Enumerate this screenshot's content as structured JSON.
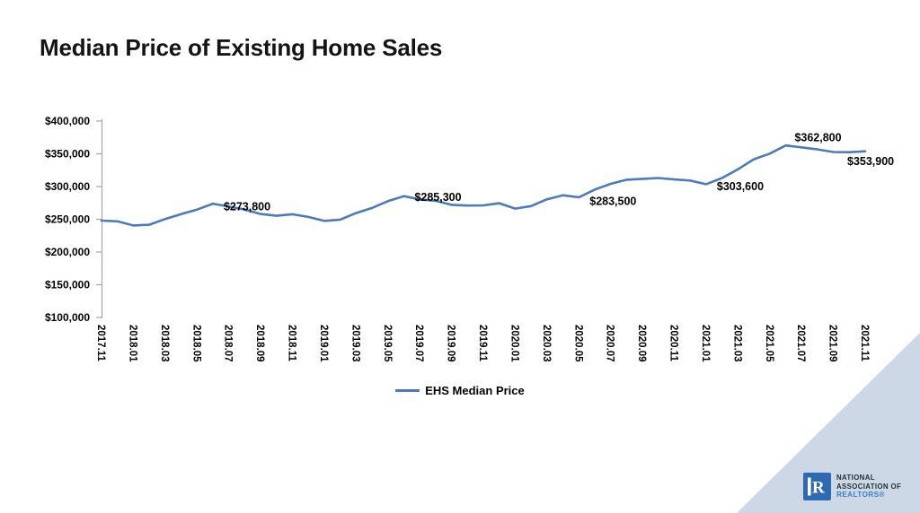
{
  "header": {
    "title": "Median Price of Existing Home Sales"
  },
  "chart_data": {
    "type": "line",
    "title": "Median Price of Existing Home Sales",
    "x": [
      "2017.11",
      "2017.12",
      "2018.01",
      "2018.02",
      "2018.03",
      "2018.04",
      "2018.05",
      "2018.06",
      "2018.07",
      "2018.08",
      "2018.09",
      "2018.10",
      "2018.11",
      "2018.12",
      "2019.01",
      "2019.02",
      "2019.03",
      "2019.04",
      "2019.05",
      "2019.06",
      "2019.07",
      "2019.08",
      "2019.09",
      "2019.10",
      "2019.11",
      "2019.12",
      "2020.01",
      "2020.02",
      "2020.03",
      "2020.04",
      "2020.05",
      "2020.06",
      "2020.07",
      "2020.08",
      "2020.09",
      "2020.10",
      "2020.11",
      "2020.12",
      "2021.01",
      "2021.02",
      "2021.03",
      "2021.04",
      "2021.05",
      "2021.06",
      "2021.07",
      "2021.08",
      "2021.09",
      "2021.10",
      "2021.11"
    ],
    "x_tick_labels": [
      "2017.11",
      "2018.01",
      "2018.03",
      "2018.05",
      "2018.07",
      "2018.09",
      "2018.11",
      "2019.01",
      "2019.03",
      "2019.05",
      "2019.07",
      "2019.09",
      "2019.11",
      "2020.01",
      "2020.03",
      "2020.05",
      "2020.07",
      "2020.09",
      "2020.11",
      "2021.01",
      "2021.03",
      "2021.05",
      "2021.07",
      "2021.09",
      "2021.11"
    ],
    "series": [
      {
        "name": "EHS Median Price",
        "color": "#4d7bb9",
        "values": [
          248000,
          246800,
          240500,
          241700,
          250400,
          257900,
          264800,
          273800,
          269300,
          264800,
          258100,
          255400,
          257700,
          253600,
          247500,
          249500,
          259400,
          267300,
          277700,
          285300,
          280400,
          278200,
          272100,
          270900,
          271300,
          274500,
          266300,
          270100,
          280600,
          286700,
          283500,
          295300,
          304100,
          310400,
          311800,
          313000,
          310800,
          309200,
          303600,
          313000,
          326300,
          341600,
          350300,
          362800,
          359900,
          356700,
          352800,
          352500,
          353900
        ]
      }
    ],
    "ylim": [
      100000,
      400000
    ],
    "y_tick_values": [
      400000,
      350000,
      300000,
      250000,
      200000,
      150000,
      100000
    ],
    "y_tick_labels": [
      "$400,000",
      "$350,000",
      "$300,000",
      "$250,000",
      "$200,000",
      "$150,000",
      "$100,000"
    ],
    "grid": false,
    "legend": {
      "label": "EHS Median Price",
      "position": "bottom-center"
    },
    "annotations": [
      {
        "x": "2018.06",
        "label": "$273,800"
      },
      {
        "x": "2019.06",
        "label": "$285,300"
      },
      {
        "x": "2020.05",
        "label": "$283,500"
      },
      {
        "x": "2021.01",
        "label": "$303,600"
      },
      {
        "x": "2021.06",
        "label": "$362,800"
      },
      {
        "x": "2021.11",
        "label": "$353,900"
      }
    ]
  },
  "logo": {
    "lines": [
      "NATIONAL",
      "ASSOCIATION OF",
      "REALTORS®"
    ],
    "square_color": "#2e6ab0",
    "text_color": "#252f3a",
    "accent_color": "#3f7dc4"
  },
  "colors": {
    "axis": "#a6a6a6",
    "text": "#000000",
    "corner_triangle": "#ccd8e6",
    "line": "#4d7bb9"
  }
}
